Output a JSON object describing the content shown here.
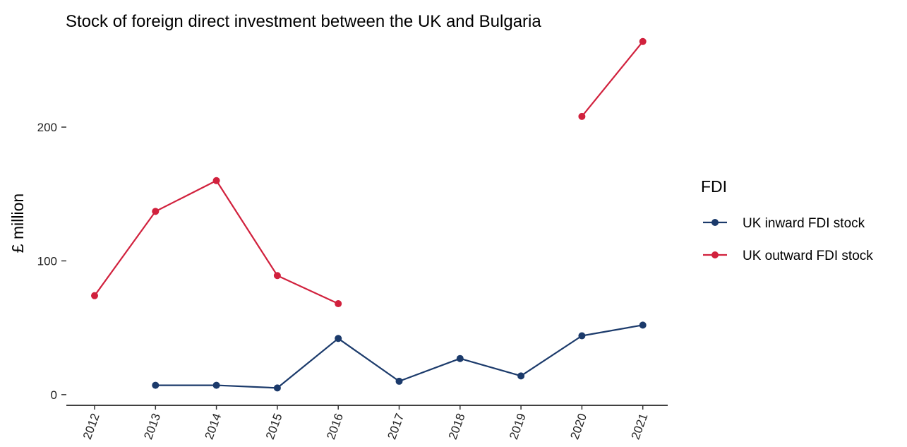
{
  "chart_data": {
    "type": "line",
    "title": "Stock of foreign direct investment between the UK and Bulgaria",
    "xlabel": "",
    "ylabel": "£ million",
    "categories": [
      "2012",
      "2013",
      "2014",
      "2015",
      "2016",
      "2017",
      "2018",
      "2019",
      "2020",
      "2021"
    ],
    "y_ticks": [
      0,
      100,
      200
    ],
    "ylim": [
      -8,
      266
    ],
    "grid": false,
    "legend": {
      "title": "FDI",
      "position": "right"
    },
    "series": [
      {
        "name": "UK inward FDI stock",
        "color": "#1b3a6b",
        "values": [
          null,
          7,
          7,
          5,
          42,
          10,
          27,
          14,
          44,
          52
        ]
      },
      {
        "name": "UK outward FDI stock",
        "color": "#d1213d",
        "values": [
          74,
          137,
          160,
          89,
          68,
          null,
          null,
          null,
          208,
          264
        ]
      }
    ]
  }
}
